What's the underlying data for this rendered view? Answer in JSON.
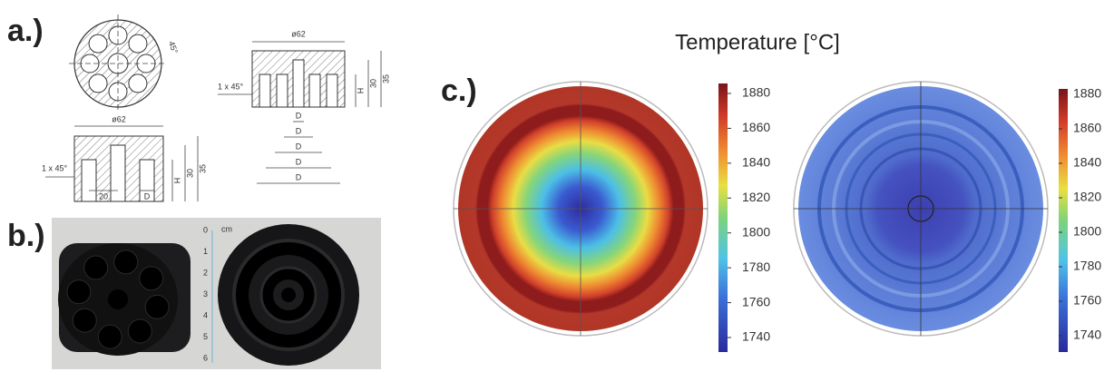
{
  "panels": {
    "a": {
      "label": "a.)",
      "top_view": {
        "angle": "45°"
      },
      "left_section": {
        "diameter": "ø62",
        "chamfer": "1 x 45°",
        "width": "20",
        "hole": "D",
        "heights": [
          "H",
          "30",
          "35"
        ]
      },
      "right_section": {
        "diameter": "ø62",
        "chamfer": "1 x 45°",
        "heights": [
          "H",
          "30",
          "35"
        ],
        "diameters": [
          "D",
          "D",
          "D",
          "D",
          "D"
        ]
      }
    },
    "b": {
      "label": "b.)",
      "ruler_unit": "cm",
      "ruler_ticks": [
        "0",
        "1",
        "2",
        "3",
        "4",
        "5",
        "6"
      ]
    },
    "c": {
      "label": "c.)",
      "title": "Temperature [°C]",
      "colorbar_ticks": [
        1880,
        1860,
        1840,
        1820,
        1800,
        1780,
        1760,
        1740
      ]
    }
  }
}
